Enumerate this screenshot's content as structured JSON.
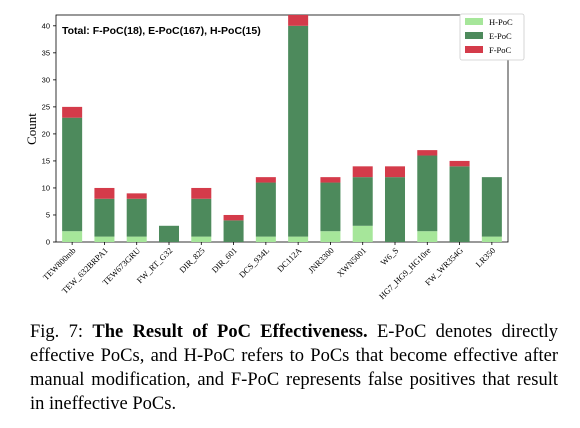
{
  "chart_data": {
    "type": "bar",
    "stacked": true,
    "annotation": "Total: F-PoC(18), E-PoC(167), H-PoC(15)",
    "ylabel": "Count",
    "ylim": [
      0,
      42
    ],
    "yticks": [
      0,
      5,
      10,
      15,
      20,
      25,
      30,
      35,
      40
    ],
    "legend_position": "top-right",
    "categories": [
      "TEW800mb",
      "TEW_632BRPA1",
      "TEW673GRU",
      "FW_RT_G32",
      "DIR_825",
      "DIR_601",
      "DCS_934L",
      "DC112A",
      "JNR3300",
      "XWN5001",
      "W6_S",
      "HG7_HG9_HG10re",
      "FW_WR354G",
      "LR350"
    ],
    "series": [
      {
        "name": "H-PoC",
        "color": "#a6e69a",
        "values": [
          2,
          1,
          1,
          0,
          1,
          0,
          1,
          1,
          2,
          3,
          0,
          2,
          0,
          1
        ]
      },
      {
        "name": "E-PoC",
        "color": "#4d8a5c",
        "values": [
          21,
          7,
          7,
          3,
          7,
          4,
          10,
          39,
          9,
          9,
          12,
          14,
          14,
          11
        ]
      },
      {
        "name": "F-PoC",
        "color": "#d43b4a",
        "values": [
          2,
          2,
          1,
          0,
          2,
          1,
          1,
          2,
          1,
          2,
          2,
          1,
          1,
          0
        ]
      }
    ]
  },
  "caption": {
    "label": "Fig. 7:",
    "title": "The Result of PoC Effectiveness.",
    "text": "E-PoC denotes directly effective PoCs, and H-PoC refers to PoCs that become effective after manual modification, and F-PoC represents false positives that result in ineffective PoCs."
  }
}
